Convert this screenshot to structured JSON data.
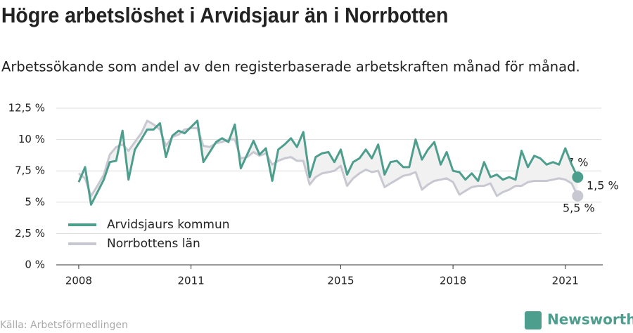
{
  "chart_data": {
    "type": "line",
    "title": "Högre arbetslöshet i Arvidsjaur än i Norrbotten",
    "subtitle": "Arbetssökande som andel av den registerbaserade arbetskraften månad för månad.",
    "source": "Källa: Arbetsförmedlingen",
    "brand": "Newsworthy",
    "annotations": [
      "7 %",
      "1,5 %",
      "5,5 %"
    ],
    "x": [
      2008,
      2008.17,
      2008.33,
      2008.5,
      2008.67,
      2008.83,
      2009,
      2009.17,
      2009.33,
      2009.5,
      2009.67,
      2009.83,
      2010,
      2010.17,
      2010.33,
      2010.5,
      2010.67,
      2010.83,
      2011,
      2011.17,
      2011.33,
      2011.5,
      2011.67,
      2011.83,
      2012,
      2012.17,
      2012.33,
      2012.5,
      2012.67,
      2012.83,
      2013,
      2013.17,
      2013.33,
      2013.5,
      2013.67,
      2013.83,
      2014,
      2014.17,
      2014.33,
      2014.5,
      2014.67,
      2014.83,
      2015,
      2015.17,
      2015.33,
      2015.5,
      2015.67,
      2015.83,
      2016,
      2016.17,
      2016.33,
      2016.5,
      2016.67,
      2016.83,
      2017,
      2017.17,
      2017.33,
      2017.5,
      2017.67,
      2017.83,
      2018,
      2018.17,
      2018.33,
      2018.5,
      2018.67,
      2018.83,
      2019,
      2019.17,
      2019.33,
      2019.5,
      2019.67,
      2019.83,
      2020,
      2020.17,
      2020.33,
      2020.5,
      2020.67,
      2020.83,
      2021,
      2021.17,
      2021.33
    ],
    "series": [
      {
        "name": "Arvidsjaurs kommun",
        "color": "#4e9e8e",
        "values": [
          6.6,
          7.8,
          4.8,
          5.8,
          6.8,
          8.2,
          8.3,
          10.7,
          6.8,
          9.2,
          10.0,
          10.8,
          10.8,
          11.3,
          8.6,
          10.3,
          10.7,
          10.5,
          11.0,
          11.5,
          8.2,
          9.0,
          9.8,
          10.1,
          9.8,
          11.2,
          7.7,
          8.8,
          9.9,
          8.8,
          9.3,
          6.7,
          9.2,
          9.6,
          10.1,
          9.4,
          10.6,
          7.0,
          8.6,
          8.9,
          9.0,
          8.2,
          9.2,
          7.2,
          8.2,
          8.5,
          9.2,
          8.5,
          9.6,
          7.2,
          8.2,
          8.3,
          7.8,
          7.8,
          10.0,
          8.4,
          9.2,
          9.8,
          8.0,
          9.0,
          7.5,
          7.4,
          6.8,
          7.3,
          6.7,
          8.2,
          7.0,
          7.2,
          6.8,
          7.0,
          6.8,
          9.1,
          7.8,
          8.7,
          8.5,
          8.0,
          8.2,
          8.0,
          9.3,
          8.0,
          7.0
        ]
      },
      {
        "name": "Norrbottens län",
        "color": "#c8c8d2",
        "values": [
          7.3,
          6.9,
          5.5,
          6.3,
          7.2,
          8.8,
          9.4,
          9.6,
          9.1,
          9.8,
          10.5,
          11.5,
          11.2,
          10.8,
          9.5,
          10.2,
          10.4,
          10.8,
          10.9,
          10.9,
          9.5,
          9.4,
          9.7,
          9.8,
          10.0,
          10.0,
          8.5,
          8.6,
          9.0,
          8.7,
          8.9,
          8.0,
          8.3,
          8.5,
          8.6,
          8.3,
          8.3,
          6.4,
          7.0,
          7.3,
          7.4,
          7.5,
          7.9,
          6.3,
          6.9,
          7.3,
          7.6,
          7.4,
          7.5,
          6.2,
          6.5,
          6.8,
          7.1,
          7.2,
          7.4,
          6.0,
          6.4,
          6.7,
          6.8,
          6.9,
          6.6,
          5.6,
          5.9,
          6.2,
          6.3,
          6.3,
          6.5,
          5.5,
          5.8,
          6.0,
          6.3,
          6.3,
          6.6,
          6.7,
          6.7,
          6.7,
          6.8,
          6.9,
          6.8,
          6.5,
          5.5
        ]
      }
    ],
    "xlim": [
      2007.4,
      2022
    ],
    "xticks": [
      2008,
      2011,
      2015,
      2018,
      2021
    ],
    "ylim": [
      0,
      12.5
    ],
    "yticks": [
      {
        "value": 0,
        "label": "0 %"
      },
      {
        "value": 2.5,
        "label": "2,5 %"
      },
      {
        "value": 5,
        "label": "5 %"
      },
      {
        "value": 7.5,
        "label": "7,5 %"
      },
      {
        "value": 10,
        "label": "10 %"
      },
      {
        "value": 12.5,
        "label": "12,5 %"
      }
    ],
    "grid": true,
    "legend": "lower-left"
  }
}
